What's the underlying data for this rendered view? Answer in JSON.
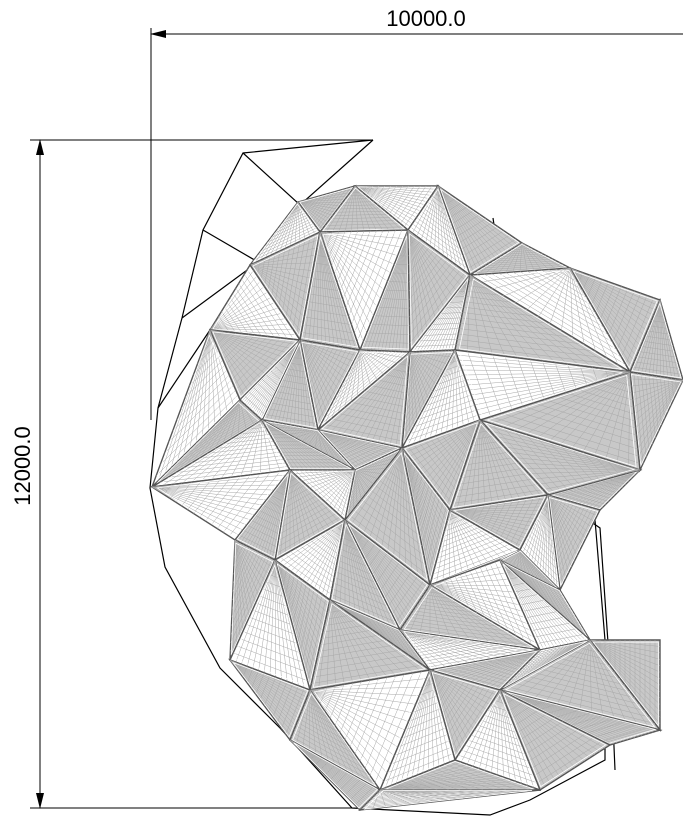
{
  "dimensions": {
    "width_label": "10000.0",
    "height_label": "12000.0"
  },
  "colors": {
    "line": "#000000",
    "panel_fill": "#c8c8c8",
    "panel_light": "#ffffff",
    "hatch": "#a8a8a8"
  }
}
